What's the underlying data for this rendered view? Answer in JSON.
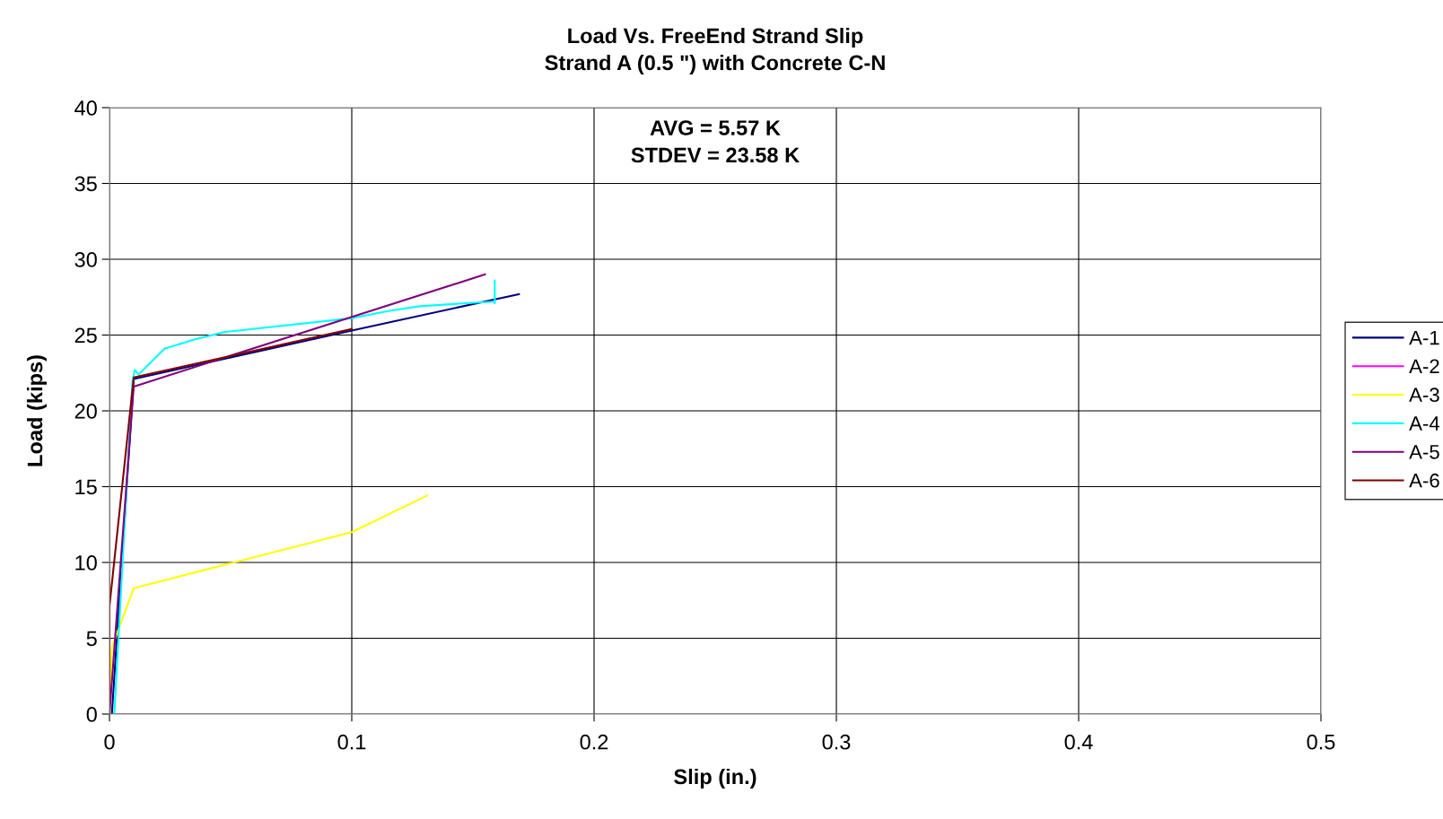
{
  "chart_data": {
    "type": "line",
    "title": "Load Vs. FreeEnd Strand Slip",
    "subtitle": "Strand A (0.5 \") with Concrete C-N",
    "xlabel": "Slip (in.)",
    "ylabel": "Load (kips)",
    "annotations": [
      "AVG = 5.57 K",
      "STDEV = 23.58 K"
    ],
    "xlim": [
      0,
      0.5
    ],
    "xticks": [
      0,
      0.1,
      0.2,
      0.3,
      0.4,
      0.5
    ],
    "ylim": [
      0,
      40
    ],
    "yticks": [
      0,
      5,
      10,
      15,
      20,
      25,
      30,
      35,
      40
    ],
    "grid": true,
    "legend": "right",
    "marker": "none",
    "line_style": "solid",
    "series": [
      {
        "name": "A-1",
        "color": "#000080",
        "x": [
          0.001,
          0.01,
          0.1,
          0.169
        ],
        "values": [
          0,
          22.1,
          25.3,
          27.7
        ]
      },
      {
        "name": "A-2",
        "color": "#ff00ff"
      },
      {
        "name": "A-3",
        "color": "#ffff00",
        "x": [
          0,
          0.001,
          0.01,
          0.1,
          0.131
        ],
        "values": [
          0,
          4.4,
          8.3,
          12.0,
          14.4
        ]
      },
      {
        "name": "A-4",
        "color": "#00ffff",
        "x": [
          0.002,
          0.0095,
          0.0104,
          0.012,
          0.0227,
          0.035,
          0.0475,
          0.0994,
          0.1155,
          0.128,
          0.147,
          0.159,
          0.159,
          0.159
        ],
        "values": [
          0,
          22.0,
          22.7,
          22.4,
          24.1,
          24.7,
          25.2,
          26.1,
          26.6,
          26.9,
          27.1,
          27.2,
          28.6,
          27.1
        ]
      },
      {
        "name": "A-5",
        "color": "#800080",
        "x": [
          0,
          0.01,
          0.155
        ],
        "values": [
          0,
          21.6,
          29.0
        ]
      },
      {
        "name": "A-6",
        "color": "#800000",
        "x": [
          0,
          0,
          0.01,
          0.1
        ],
        "values": [
          0,
          7.1,
          22.2,
          25.4
        ]
      }
    ]
  }
}
